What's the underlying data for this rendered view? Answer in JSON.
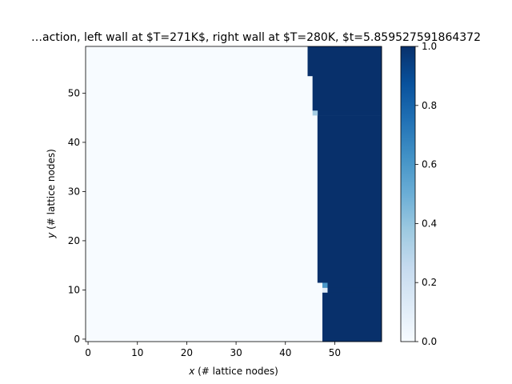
{
  "chart_data": {
    "type": "heatmap",
    "title": "…action, left wall at $T=271K$, right wall at $T=280K, $t=5.859527591864372",
    "xlabel": "x (# lattice nodes)",
    "ylabel": "y (# lattice nodes)",
    "xlabel_parts": {
      "var": "x",
      "rest": " (# lattice nodes)"
    },
    "ylabel_parts": {
      "var": "y",
      "rest": " (# lattice nodes)"
    },
    "grid": false,
    "nx": 60,
    "ny": 60,
    "colormap": "Blues",
    "colorbar": {
      "range": [
        0.0,
        1.0
      ],
      "ticks": [
        "0.0",
        "0.2",
        "0.4",
        "0.6",
        "0.8",
        "1.0"
      ],
      "colors": [
        "#f7fbff",
        "#deebf7",
        "#c6dbef",
        "#9ecae1",
        "#6baed6",
        "#4292c6",
        "#2171b5",
        "#08519c",
        "#08306b"
      ]
    },
    "x_ticks": [
      "0",
      "10",
      "20",
      "30",
      "40",
      "50"
    ],
    "y_ticks": [
      "0",
      "10",
      "20",
      "30",
      "40",
      "50"
    ],
    "xlim": [
      -0.5,
      59.5
    ],
    "ylim": [
      -0.5,
      59.5
    ],
    "interface_by_row": [
      {
        "y_from": 0,
        "y_to": 9,
        "x_start": 48
      },
      {
        "y_from": 10,
        "y_to": 10,
        "x_start": 48,
        "edge_x": 48,
        "edge_value": 0.1
      },
      {
        "y_from": 11,
        "y_to": 11,
        "x_start": 48,
        "edge_x": 48,
        "edge_value": 0.6
      },
      {
        "y_from": 12,
        "y_to": 45,
        "x_start": 47
      },
      {
        "y_from": 46,
        "y_to": 46,
        "x_start": 47,
        "edge_x": 46,
        "edge_value": 0.35
      },
      {
        "y_from": 47,
        "y_to": 53,
        "x_start": 46
      },
      {
        "y_from": 54,
        "y_to": 59,
        "x_start": 45
      }
    ]
  }
}
